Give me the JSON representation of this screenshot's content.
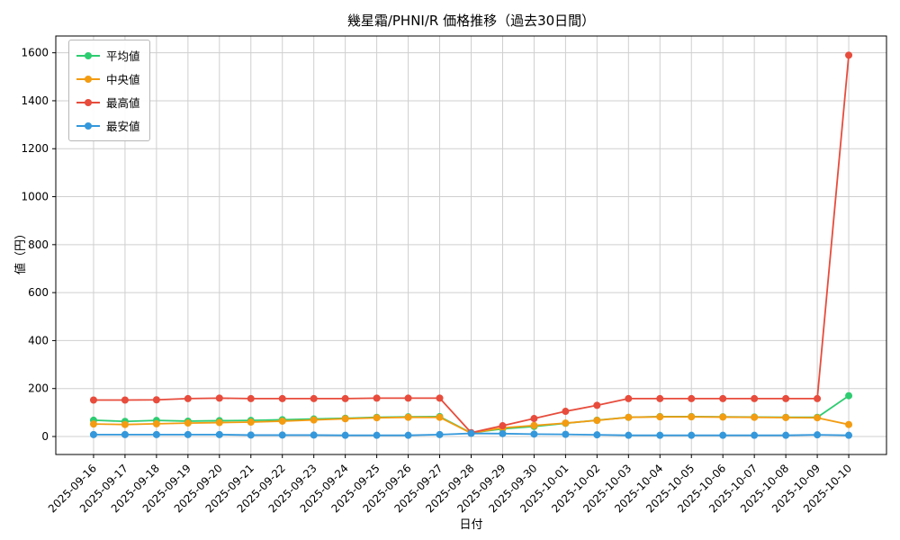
{
  "chart_data": {
    "type": "line",
    "title": "幾星霜/PHNI/R 価格推移（過去30日間）",
    "xlabel": "日付",
    "ylabel": "値（円）",
    "grid": true,
    "legend_position": "upper-left",
    "ylim": [
      -75,
      1670
    ],
    "yticks": [
      0,
      200,
      400,
      600,
      800,
      1000,
      1200,
      1400,
      1600
    ],
    "x": [
      "2025-09-16",
      "2025-09-17",
      "2025-09-18",
      "2025-09-19",
      "2025-09-20",
      "2025-09-21",
      "2025-09-22",
      "2025-09-23",
      "2025-09-24",
      "2025-09-25",
      "2025-09-26",
      "2025-09-27",
      "2025-09-28",
      "2025-09-29",
      "2025-09-30",
      "2025-10-01",
      "2025-10-02",
      "2025-10-03",
      "2025-10-04",
      "2025-10-05",
      "2025-10-06",
      "2025-10-07",
      "2025-10-08",
      "2025-10-09",
      "2025-10-10"
    ],
    "series": [
      {
        "id": "average",
        "name": "平均値",
        "color": "#2ecc71",
        "values": [
          68,
          63,
          67,
          64,
          66,
          67,
          70,
          73,
          76,
          80,
          82,
          83,
          15,
          32,
          42,
          55,
          68,
          80,
          83,
          83,
          82,
          81,
          80,
          80,
          170
        ]
      },
      {
        "id": "median",
        "name": "中央値",
        "color": "#f39c12",
        "values": [
          52,
          50,
          53,
          56,
          58,
          60,
          64,
          69,
          74,
          78,
          80,
          80,
          14,
          36,
          46,
          56,
          67,
          80,
          82,
          82,
          81,
          80,
          79,
          78,
          50
        ]
      },
      {
        "id": "max",
        "name": "最高値",
        "color": "#e74c3c",
        "values": [
          152,
          152,
          153,
          158,
          160,
          158,
          158,
          158,
          158,
          160,
          160,
          160,
          16,
          45,
          75,
          105,
          130,
          158,
          158,
          158,
          158,
          158,
          158,
          158,
          1590
        ]
      },
      {
        "id": "min",
        "name": "最安値",
        "color": "#3498db",
        "values": [
          8,
          8,
          8,
          8,
          8,
          6,
          6,
          6,
          5,
          5,
          5,
          8,
          13,
          12,
          10,
          9,
          7,
          5,
          5,
          5,
          5,
          5,
          5,
          7,
          5
        ]
      }
    ]
  }
}
